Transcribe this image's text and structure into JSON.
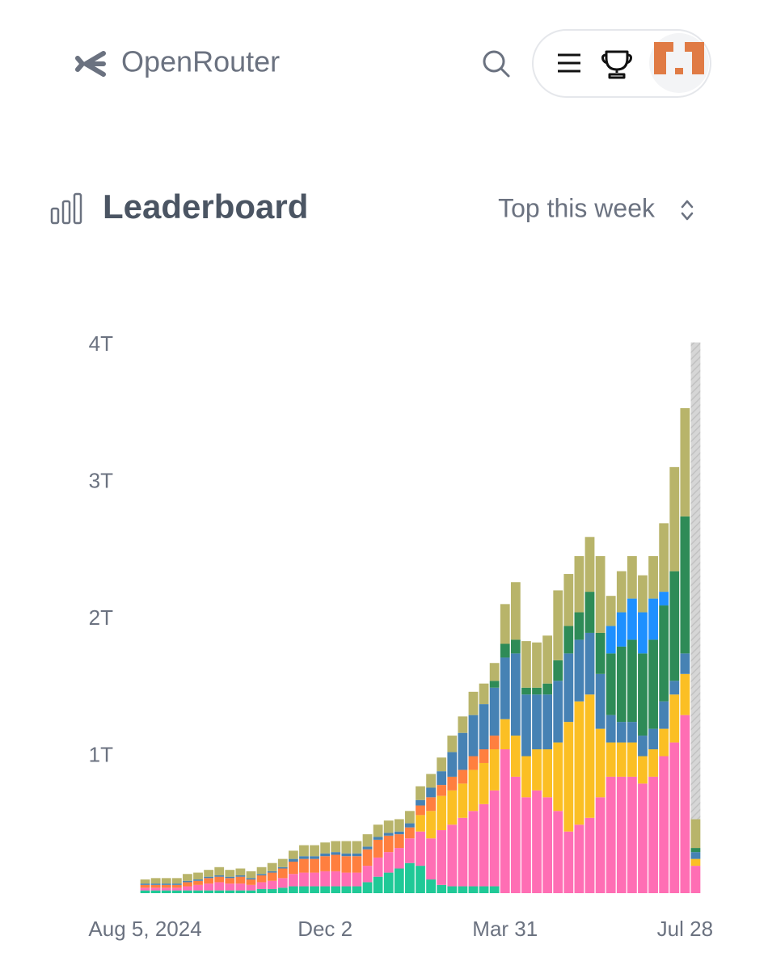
{
  "header": {
    "brand": "OpenRouter"
  },
  "section": {
    "title": "Leaderboard",
    "period": "Top this week"
  },
  "chart_data": {
    "type": "stacked-bar",
    "categories": [
      "Aug 5, 2024",
      null,
      null,
      null,
      null,
      null,
      null,
      null,
      null,
      null,
      null,
      null,
      null,
      null,
      null,
      null,
      null,
      "Dec 2",
      null,
      null,
      null,
      null,
      null,
      null,
      null,
      null,
      null,
      null,
      null,
      null,
      null,
      null,
      null,
      null,
      "Mar 31",
      null,
      null,
      null,
      null,
      null,
      null,
      null,
      null,
      null,
      null,
      null,
      null,
      null,
      null,
      null,
      null,
      "Jul 28",
      null
    ],
    "ylim": [
      0,
      4
    ],
    "yticks": [
      {
        "value": 1,
        "label": "1T"
      },
      {
        "value": 2,
        "label": "2T"
      },
      {
        "value": 3,
        "label": "3T"
      },
      {
        "value": 4,
        "label": "4T"
      }
    ],
    "series": [
      {
        "color": "#20c997",
        "values": [
          0.02,
          0.02,
          0.02,
          0.02,
          0.02,
          0.02,
          0.02,
          0.02,
          0.02,
          0.02,
          0.02,
          0.03,
          0.03,
          0.04,
          0.05,
          0.05,
          0.05,
          0.05,
          0.05,
          0.05,
          0.05,
          0.08,
          0.12,
          0.15,
          0.18,
          0.22,
          0.2,
          0.1,
          0.06,
          0.05,
          0.05,
          0.05,
          0.05,
          0.05,
          0,
          0,
          0,
          0,
          0,
          0,
          0,
          0,
          0,
          0,
          0,
          0,
          0,
          0,
          0,
          0,
          0,
          0,
          0
        ]
      },
      {
        "color": "#ff6eb4",
        "values": [
          0.02,
          0.02,
          0.02,
          0.02,
          0.03,
          0.04,
          0.05,
          0.06,
          0.05,
          0.05,
          0.04,
          0.05,
          0.06,
          0.07,
          0.09,
          0.1,
          0.1,
          0.11,
          0.11,
          0.1,
          0.1,
          0.12,
          0.14,
          0.15,
          0.15,
          0.18,
          0.25,
          0.3,
          0.4,
          0.45,
          0.5,
          0.55,
          0.6,
          0.7,
          1.05,
          0.85,
          0.7,
          0.75,
          0.7,
          0.6,
          0.45,
          0.5,
          0.55,
          0.7,
          0.85,
          0.85,
          0.85,
          0.8,
          0.85,
          1.0,
          1.1,
          1.3,
          0.2
        ]
      },
      {
        "color": "#fbbf24",
        "values": [
          0,
          0,
          0,
          0,
          0,
          0,
          0,
          0,
          0,
          0,
          0,
          0,
          0,
          0,
          0,
          0,
          0,
          0,
          0,
          0,
          0,
          0,
          0,
          0,
          0,
          0,
          0.12,
          0.2,
          0.25,
          0.25,
          0.25,
          0.3,
          0.3,
          0.3,
          0.22,
          0.3,
          0.3,
          0.3,
          0.35,
          0.5,
          0.8,
          0.9,
          0.9,
          0.5,
          0.25,
          0.25,
          0.25,
          0.2,
          0.2,
          0.2,
          0.35,
          0.3,
          0.05
        ]
      },
      {
        "color": "#ff7f3f",
        "values": [
          0.02,
          0.02,
          0.02,
          0.02,
          0.03,
          0.03,
          0.04,
          0.04,
          0.04,
          0.05,
          0.04,
          0.05,
          0.06,
          0.07,
          0.09,
          0.1,
          0.1,
          0.11,
          0.12,
          0.12,
          0.12,
          0.12,
          0.13,
          0.12,
          0.1,
          0.08,
          0.07,
          0.1,
          0.08,
          0.1,
          0.1,
          0.1,
          0.1,
          0.1,
          0,
          0,
          0,
          0,
          0,
          0,
          0,
          0,
          0,
          0,
          0,
          0,
          0,
          0,
          0,
          0,
          0,
          0,
          0
        ]
      },
      {
        "color": "#4682b4",
        "values": [
          0.01,
          0.01,
          0.01,
          0.01,
          0.01,
          0.01,
          0.01,
          0.01,
          0.01,
          0.01,
          0.01,
          0.01,
          0.01,
          0.01,
          0.02,
          0.02,
          0.02,
          0.02,
          0.02,
          0.02,
          0.02,
          0.02,
          0.02,
          0.02,
          0.02,
          0.03,
          0.04,
          0.07,
          0.1,
          0.18,
          0.27,
          0.3,
          0.33,
          0.35,
          0.45,
          0.6,
          0.45,
          0.4,
          0.4,
          0.45,
          0.5,
          0.45,
          0.45,
          0.4,
          0.2,
          0.15,
          0.15,
          0.15,
          0.15,
          0.2,
          0.1,
          0.15,
          0.05
        ]
      },
      {
        "color": "#2e8b57",
        "values": [
          0,
          0,
          0,
          0,
          0,
          0,
          0,
          0,
          0,
          0,
          0,
          0,
          0,
          0,
          0,
          0,
          0,
          0,
          0,
          0,
          0,
          0,
          0,
          0,
          0,
          0,
          0,
          0,
          0,
          0,
          0,
          0,
          0,
          0.05,
          0.1,
          0.1,
          0.05,
          0.05,
          0.08,
          0.15,
          0.2,
          0.2,
          0.3,
          0.3,
          0.45,
          0.55,
          0.6,
          0.6,
          0.65,
          0.7,
          0.8,
          1.0,
          0.03
        ]
      },
      {
        "color": "#1e90ff",
        "values": [
          0,
          0,
          0,
          0,
          0,
          0,
          0,
          0,
          0,
          0,
          0,
          0,
          0,
          0,
          0,
          0,
          0,
          0,
          0,
          0,
          0,
          0,
          0,
          0,
          0,
          0,
          0,
          0,
          0,
          0,
          0,
          0,
          0,
          0,
          0,
          0,
          0,
          0,
          0,
          0,
          0,
          0,
          0,
          0,
          0.2,
          0.25,
          0.3,
          0.3,
          0.3,
          0.1,
          0,
          0,
          0
        ]
      },
      {
        "color": "#b8b46a",
        "values": [
          0.03,
          0.04,
          0.04,
          0.04,
          0.05,
          0.05,
          0.05,
          0.06,
          0.05,
          0.05,
          0.05,
          0.05,
          0.06,
          0.06,
          0.06,
          0.08,
          0.08,
          0.08,
          0.08,
          0.09,
          0.09,
          0.09,
          0.09,
          0.09,
          0.09,
          0.09,
          0.1,
          0.1,
          0.1,
          0.12,
          0.12,
          0.17,
          0.15,
          0.13,
          0.29,
          0.42,
          0.34,
          0.33,
          0.35,
          0.51,
          0.38,
          0.41,
          0.4,
          0.56,
          0.22,
          0.3,
          0.31,
          0.27,
          0.31,
          0.5,
          0.76,
          0.79,
          0.21
        ]
      },
      {
        "color": "#cccccc",
        "values": [
          0,
          0,
          0,
          0,
          0,
          0,
          0,
          0,
          0,
          0,
          0,
          0,
          0,
          0,
          0,
          0,
          0,
          0,
          0,
          0,
          0,
          0,
          0,
          0,
          0,
          0,
          0,
          0,
          0,
          0,
          0,
          0,
          0,
          0,
          0,
          0,
          0,
          0,
          0,
          0,
          0,
          0,
          0,
          0,
          0,
          0,
          0,
          0,
          0,
          0,
          0,
          0,
          3.48
        ]
      }
    ]
  }
}
